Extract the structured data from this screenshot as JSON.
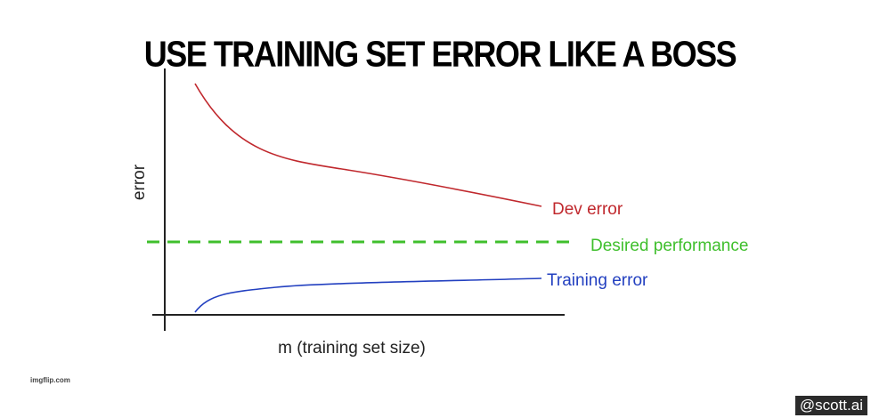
{
  "caption": "USE TRAINING SET ERROR LIKE A BOSS",
  "chart": {
    "ylabel": "error",
    "xlabel": "m (training set size)",
    "labels": {
      "dev": "Dev error",
      "desired": "Desired performance",
      "training": "Training error"
    },
    "colors": {
      "dev": "#c0282d",
      "desired": "#3fbf2c",
      "training": "#2340c0",
      "axes": "#222222"
    }
  },
  "watermark": "imgflip.com",
  "credit": "@scott.ai"
}
